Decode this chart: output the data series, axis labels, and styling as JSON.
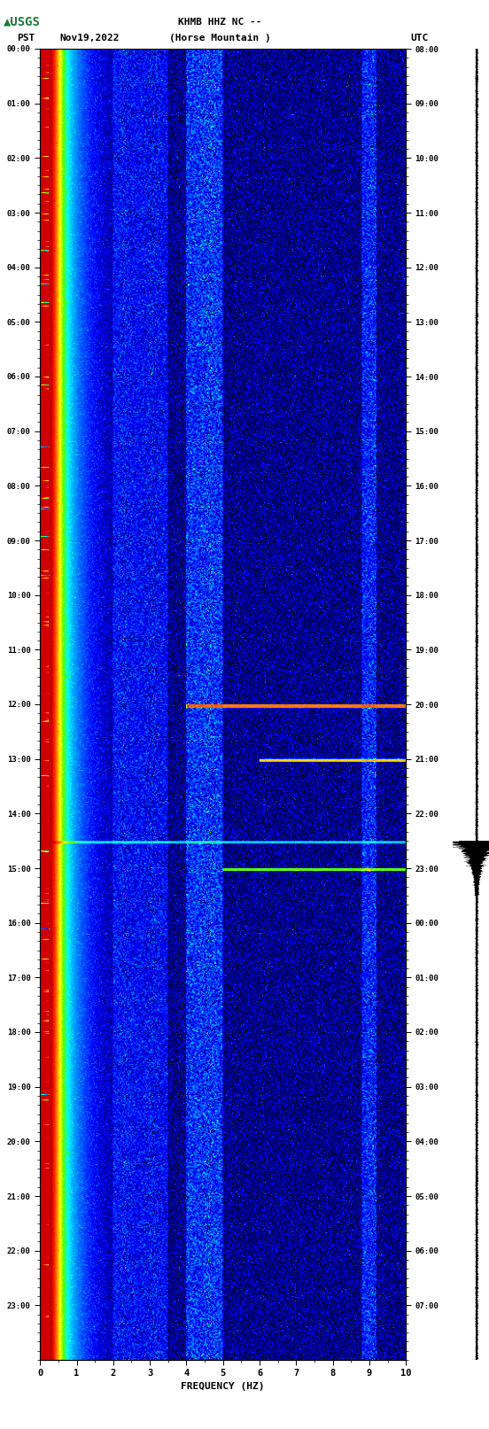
{
  "title_line1": "KHMB HHZ NC --",
  "title_line2": "(Horse Mountain )",
  "left_label": "PST",
  "date_label": "Nov19,2022",
  "right_label": "UTC",
  "xlabel": "FREQUENCY (HZ)",
  "freq_min": 0,
  "freq_max": 10,
  "freq_ticks": [
    0,
    1,
    2,
    3,
    4,
    5,
    6,
    7,
    8,
    9,
    10
  ],
  "pst_times": [
    "00:00",
    "01:00",
    "02:00",
    "03:00",
    "04:00",
    "05:00",
    "06:00",
    "07:00",
    "08:00",
    "09:00",
    "10:00",
    "11:00",
    "12:00",
    "13:00",
    "14:00",
    "15:00",
    "16:00",
    "17:00",
    "18:00",
    "19:00",
    "20:00",
    "21:00",
    "22:00",
    "23:00"
  ],
  "utc_times": [
    "08:00",
    "09:00",
    "10:00",
    "11:00",
    "12:00",
    "13:00",
    "14:00",
    "15:00",
    "16:00",
    "17:00",
    "18:00",
    "19:00",
    "20:00",
    "21:00",
    "22:00",
    "23:00",
    "00:00",
    "01:00",
    "02:00",
    "03:00",
    "04:00",
    "05:00",
    "06:00",
    "07:00"
  ],
  "fig_bg": "#ffffff",
  "usgs_green": "#1a7a3c",
  "cmap_colors": [
    [
      0.0,
      "#000033"
    ],
    [
      0.1,
      "#000080"
    ],
    [
      0.22,
      "#0000ff"
    ],
    [
      0.35,
      "#0055ff"
    ],
    [
      0.48,
      "#00aaff"
    ],
    [
      0.58,
      "#00ffff"
    ],
    [
      0.68,
      "#55ff00"
    ],
    [
      0.76,
      "#ffff00"
    ],
    [
      0.84,
      "#ff8800"
    ],
    [
      0.92,
      "#ff2200"
    ],
    [
      1.0,
      "#cc0000"
    ]
  ]
}
